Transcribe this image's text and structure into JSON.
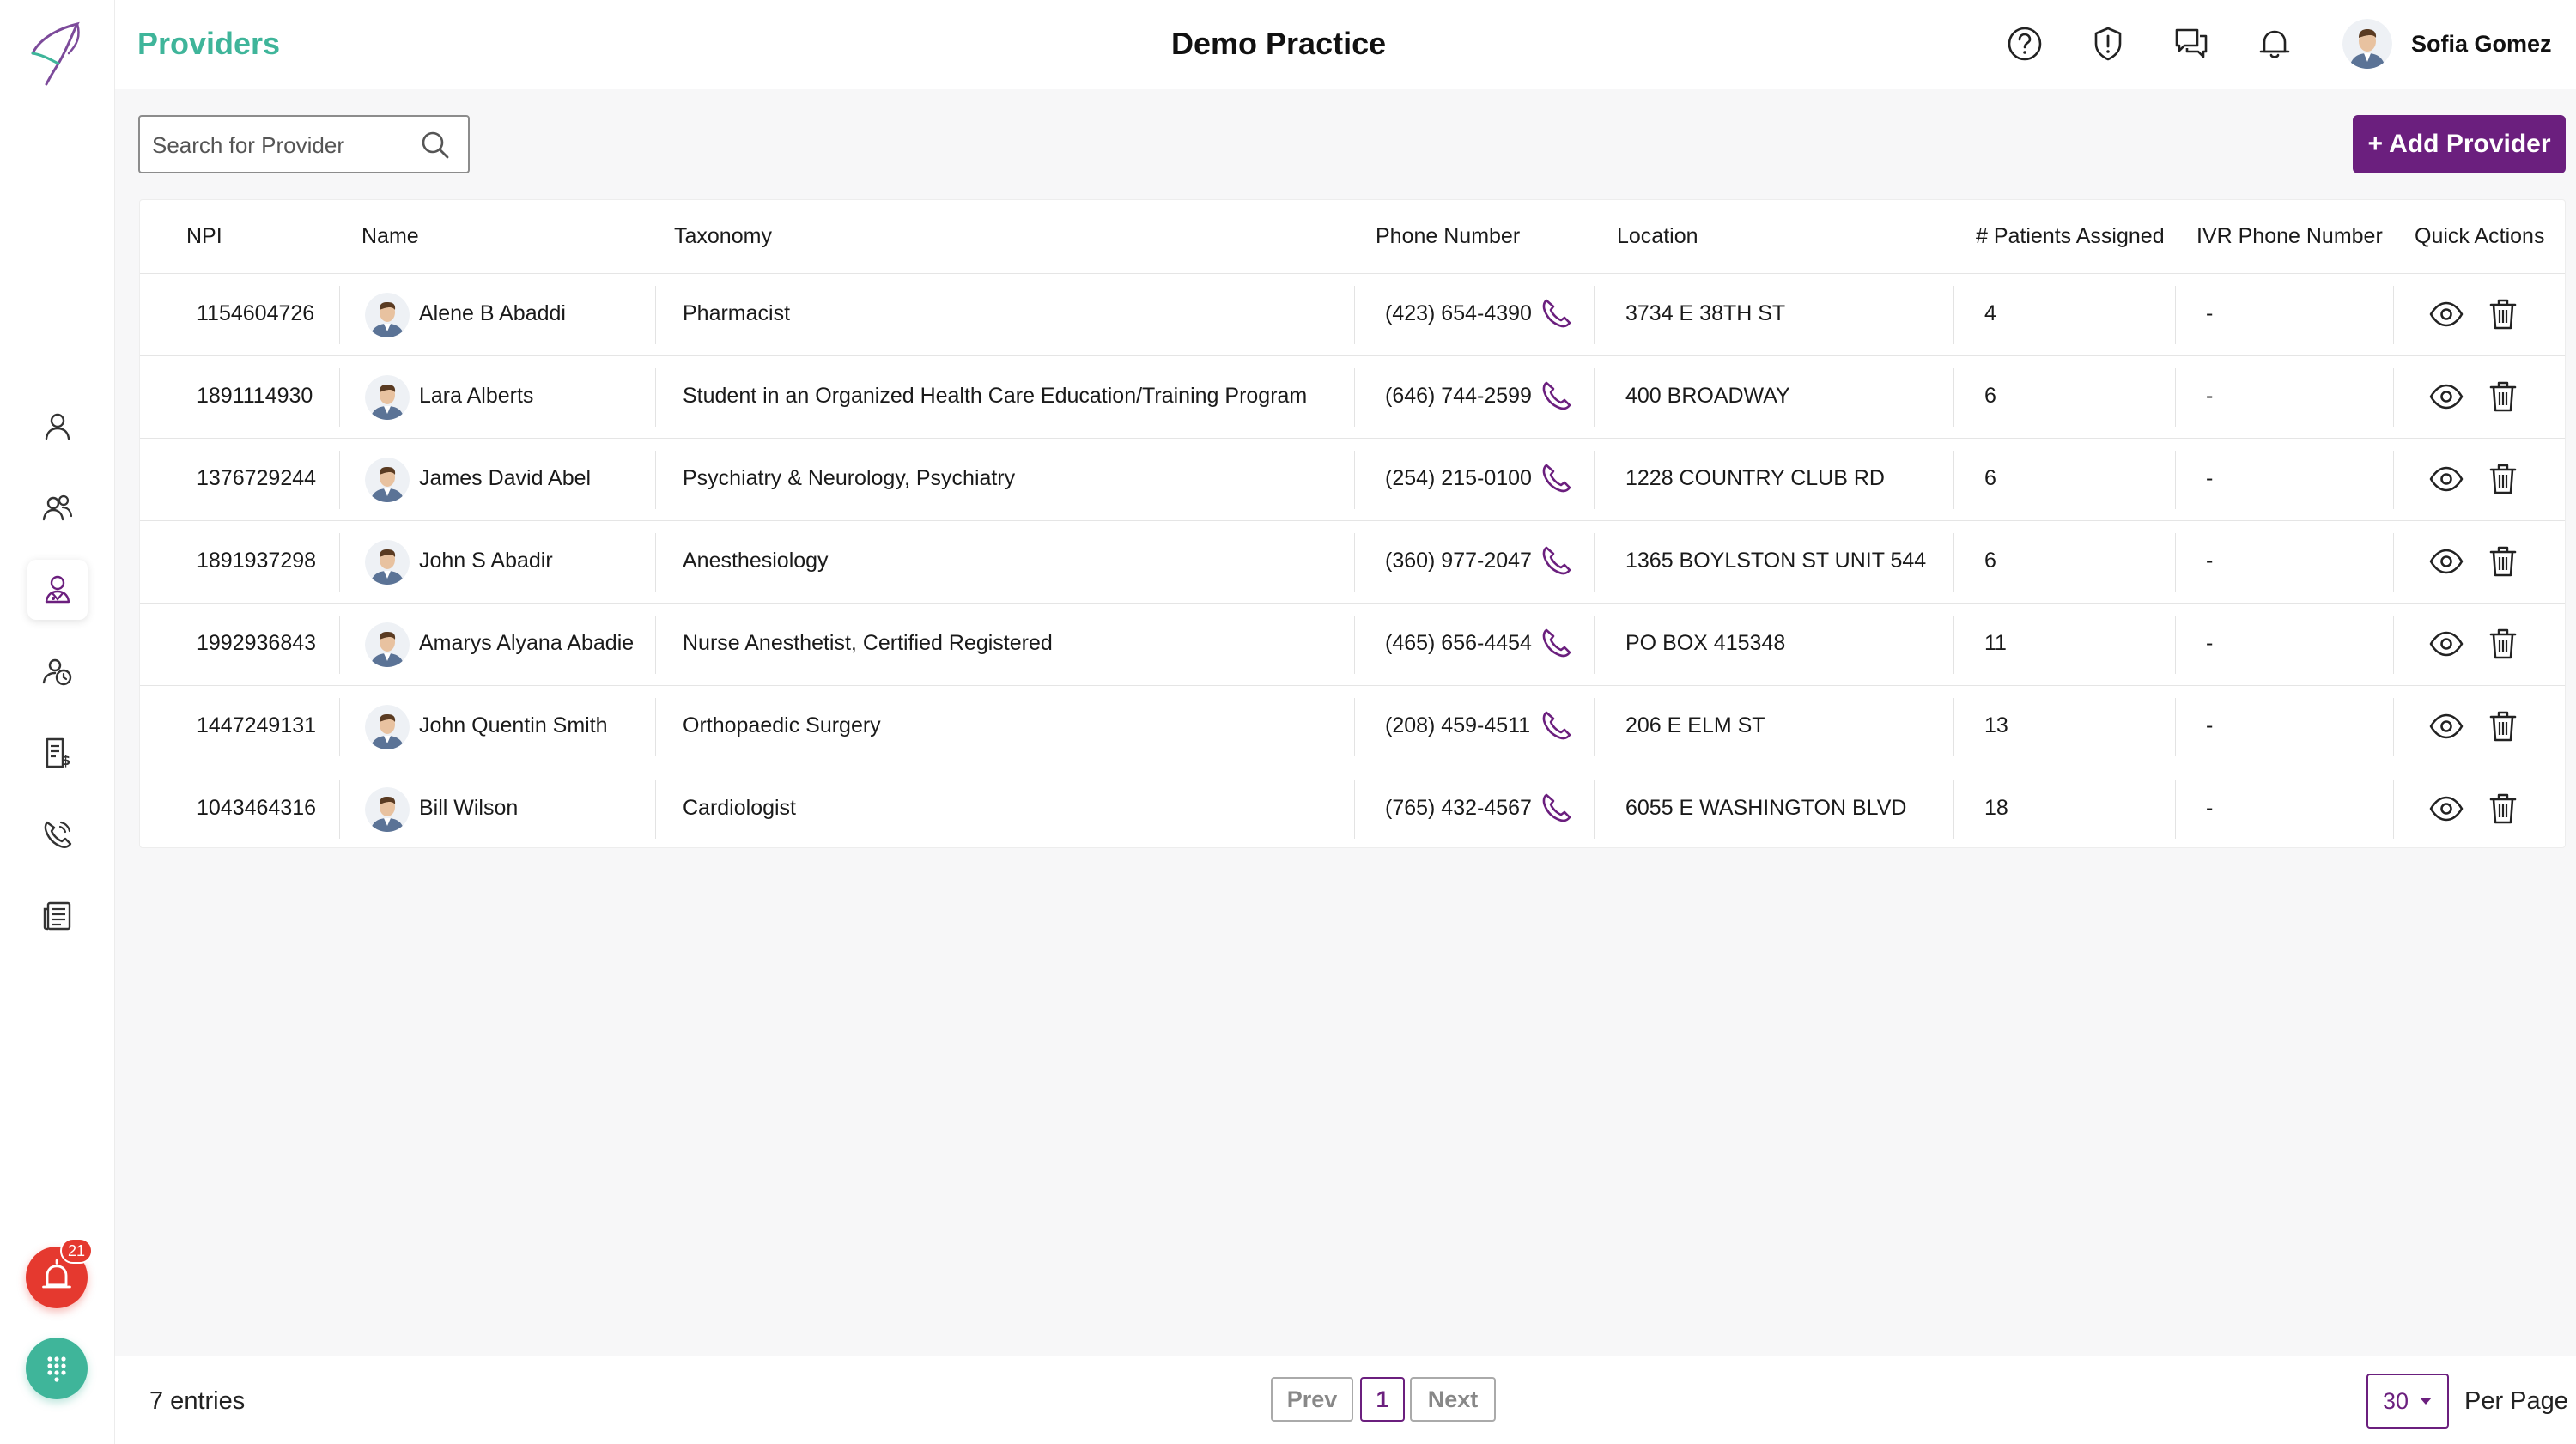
{
  "header": {
    "page_title": "Providers",
    "practice_name": "Demo Practice",
    "user_name": "Sofia Gomez",
    "icons": [
      "help-icon",
      "alert-shield-icon",
      "chat-icon",
      "bell-icon"
    ]
  },
  "sidebar": {
    "items": [
      {
        "icon": "person-icon",
        "active": false
      },
      {
        "icon": "group-icon",
        "active": false
      },
      {
        "icon": "provider-icon",
        "active": true
      },
      {
        "icon": "clock-person-icon",
        "active": false
      },
      {
        "icon": "billing-icon",
        "active": false
      },
      {
        "icon": "phone-call-icon",
        "active": false
      },
      {
        "icon": "news-icon",
        "active": false
      }
    ],
    "alarm_badge": "21"
  },
  "toolbar": {
    "search_placeholder": "Search for Provider",
    "add_button": "+ Add Provider"
  },
  "table": {
    "headers": {
      "npi": "NPI",
      "name": "Name",
      "taxonomy": "Taxonomy",
      "phone": "Phone Number",
      "location": "Location",
      "patients": "# Patients Assigned",
      "ivr": "IVR Phone Number",
      "actions": "Quick Actions"
    },
    "rows": [
      {
        "npi": "1154604726",
        "name": "Alene B Abaddi",
        "taxonomy": "Pharmacist",
        "phone": "(423) 654-4390",
        "location": "3734 E 38TH ST",
        "patients": "4",
        "ivr": "-"
      },
      {
        "npi": "1891114930",
        "name": "Lara Alberts",
        "taxonomy": "Student in an Organized Health Care Education/Training Program",
        "phone": "(646) 744-2599",
        "location": "400 BROADWAY",
        "patients": "6",
        "ivr": "-"
      },
      {
        "npi": "1376729244",
        "name": "James David Abel",
        "taxonomy": "Psychiatry & Neurology, Psychiatry",
        "phone": "(254) 215-0100",
        "location": "1228 COUNTRY CLUB RD",
        "patients": "6",
        "ivr": "-"
      },
      {
        "npi": "1891937298",
        "name": "John S Abadir",
        "taxonomy": "Anesthesiology",
        "phone": "(360) 977-2047",
        "location": "1365 BOYLSTON ST UNIT 544",
        "patients": "6",
        "ivr": "-"
      },
      {
        "npi": "1992936843",
        "name": "Amarys Alyana Abadie",
        "taxonomy": "Nurse Anesthetist, Certified Registered",
        "phone": "(465) 656-4454",
        "location": "PO BOX 415348",
        "patients": "11",
        "ivr": "-"
      },
      {
        "npi": "1447249131",
        "name": "John Quentin Smith",
        "taxonomy": "Orthopaedic Surgery",
        "phone": "(208) 459-4511",
        "location": "206 E ELM ST",
        "patients": "13",
        "ivr": "-"
      },
      {
        "npi": "1043464316",
        "name": "Bill Wilson",
        "taxonomy": "Cardiologist",
        "phone": "(765) 432-4567",
        "location": "6055 E WASHINGTON BLVD",
        "patients": "18",
        "ivr": "-"
      }
    ]
  },
  "footer": {
    "entries": "7 entries",
    "prev": "Prev",
    "current_page": "1",
    "next": "Next",
    "per_page_value": "30",
    "per_page_label": "Per Page"
  },
  "colors": {
    "brand_green": "#3fb59a",
    "brand_purple": "#6b1f7e",
    "alarm_red": "#e5392f"
  }
}
